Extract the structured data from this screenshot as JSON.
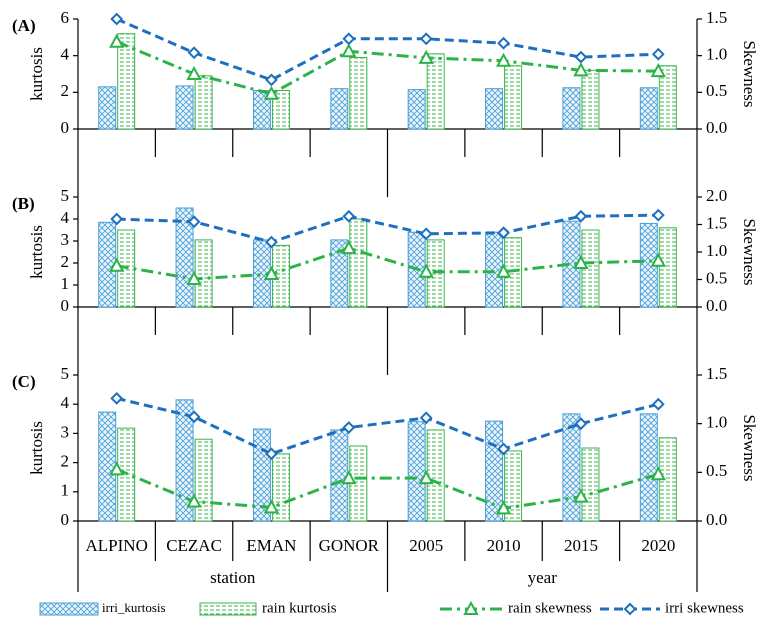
{
  "chart_data": [
    {
      "type": "bar",
      "panel_label": "(A)",
      "y_label": "kurtosis",
      "y2_label": "Skewness",
      "ylim": [
        0,
        6
      ],
      "yticks": [
        0,
        2,
        4,
        6
      ],
      "y2lim": [
        0,
        1.5
      ],
      "y2ticks": [
        {
          "value": 0,
          "label": "0.0"
        },
        0.5,
        {
          "value": 1,
          "label": "1.0"
        },
        1.5
      ],
      "series": [
        {
          "name": "irri_kurtosis",
          "type": "bar",
          "color": "#4a9fd8",
          "values": [
            2.3,
            2.35,
            2.1,
            2.2,
            2.15,
            2.2,
            2.25,
            2.25
          ]
        },
        {
          "name": "rain  kurtosis",
          "type": "bar",
          "color": "#3cb44b",
          "values": [
            5.2,
            2.9,
            2.1,
            3.9,
            4.1,
            3.45,
            3.2,
            3.45
          ]
        },
        {
          "name": "rain  skewness",
          "type": "line",
          "axis": "y2",
          "color": "#2bb34a",
          "values": [
            1.19,
            0.75,
            0.48,
            1.06,
            0.97,
            0.93,
            0.8,
            0.79
          ]
        },
        {
          "name": "irri  skewness",
          "type": "line",
          "axis": "y2",
          "color": "#1f6fc0",
          "values": [
            1.5,
            1.04,
            0.67,
            1.23,
            1.23,
            1.17,
            0.98,
            1.02
          ]
        }
      ]
    },
    {
      "type": "bar",
      "panel_label": "(B)",
      "y_label": "kurtosis",
      "y2_label": "Skewness",
      "ylim": [
        0,
        5
      ],
      "yticks": [
        0,
        1,
        2,
        3,
        4,
        5
      ],
      "y2lim": [
        0,
        2
      ],
      "y2ticks": [
        {
          "value": 0,
          "label": "0.0"
        },
        0.5,
        {
          "value": 1,
          "label": "1.0"
        },
        1.5,
        {
          "value": 2,
          "label": "2.0"
        }
      ],
      "series": [
        {
          "type": "bar",
          "color": "#4a9fd8",
          "values": [
            3.85,
            4.5,
            3.05,
            3.05,
            3.4,
            3.4,
            3.9,
            3.8
          ]
        },
        {
          "type": "bar",
          "color": "#3cb44b",
          "values": [
            3.5,
            3.05,
            2.8,
            4.0,
            3.05,
            3.15,
            3.5,
            3.6
          ]
        },
        {
          "type": "line",
          "axis": "y2",
          "color": "#2bb34a",
          "values": [
            0.75,
            0.51,
            0.6,
            1.07,
            0.64,
            0.64,
            0.8,
            0.84
          ]
        },
        {
          "type": "line",
          "axis": "y2",
          "color": "#1f6fc0",
          "values": [
            1.6,
            1.55,
            1.18,
            1.65,
            1.33,
            1.35,
            1.65,
            1.67
          ]
        }
      ]
    },
    {
      "type": "bar",
      "panel_label": "(C)",
      "y_label": "kurtosis",
      "y2_label": "Skewness",
      "categories": [
        "ALPINO",
        "CEZAC",
        "EMAN",
        "GONOR",
        "2005",
        "2010",
        "2015",
        "2020"
      ],
      "groups": [
        "station",
        "year"
      ],
      "ylim": [
        0,
        5
      ],
      "yticks": [
        0,
        1,
        2,
        3,
        4,
        5
      ],
      "y2lim": [
        0,
        1.5
      ],
      "y2ticks": [
        {
          "value": 0,
          "label": "0.0"
        },
        0.5,
        {
          "value": 1,
          "label": "1.0"
        },
        1.5
      ],
      "series": [
        {
          "type": "bar",
          "color": "#4a9fd8",
          "values": [
            3.73,
            4.15,
            3.15,
            3.12,
            3.4,
            3.42,
            3.67,
            3.67
          ]
        },
        {
          "type": "bar",
          "color": "#3cb44b",
          "values": [
            3.18,
            2.8,
            2.3,
            2.57,
            3.12,
            2.4,
            2.5,
            2.85
          ]
        },
        {
          "type": "line",
          "axis": "y2",
          "color": "#2bb34a",
          "values": [
            0.53,
            0.2,
            0.14,
            0.44,
            0.44,
            0.13,
            0.25,
            0.48
          ]
        },
        {
          "type": "line",
          "axis": "y2",
          "color": "#1f6fc0",
          "values": [
            1.26,
            1.07,
            0.69,
            0.96,
            1.06,
            0.74,
            1.0,
            1.2
          ]
        }
      ]
    }
  ]
}
